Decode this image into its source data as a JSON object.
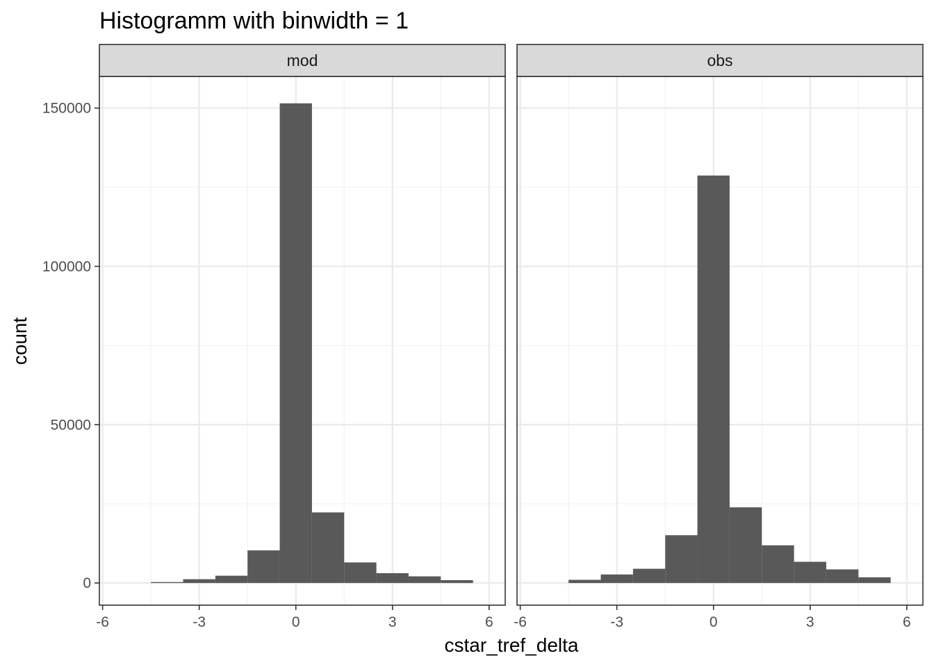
{
  "chart_data": {
    "type": "bar",
    "title": "Histogramm with binwidth = 1",
    "xlabel": "cstar_tref_delta",
    "ylabel": "count",
    "binwidth": 1,
    "xlim": [
      -6.1,
      6.5
    ],
    "ylim": [
      -7000,
      160000
    ],
    "x_ticks": [
      -6,
      -3,
      0,
      3,
      6
    ],
    "x_tick_labels": [
      "-6",
      "-3",
      "0",
      "3",
      "6"
    ],
    "y_ticks": [
      0,
      50000,
      100000,
      150000
    ],
    "y_tick_labels": [
      "0",
      "50000",
      "100000",
      "150000"
    ],
    "grid": true,
    "bar_color": "#595959",
    "panels": [
      {
        "name": "mod",
        "bins": [
          -4,
          -3,
          -2,
          -1,
          0,
          1,
          2,
          3,
          4,
          5
        ],
        "counts": [
          300,
          1200,
          2300,
          10300,
          151500,
          22300,
          6500,
          3100,
          2100,
          900
        ]
      },
      {
        "name": "obs",
        "bins": [
          -4,
          -3,
          -2,
          -1,
          0,
          1,
          2,
          3,
          4,
          5
        ],
        "counts": [
          1000,
          2700,
          4500,
          15100,
          128700,
          23900,
          11900,
          6700,
          4300,
          1800
        ]
      }
    ]
  }
}
